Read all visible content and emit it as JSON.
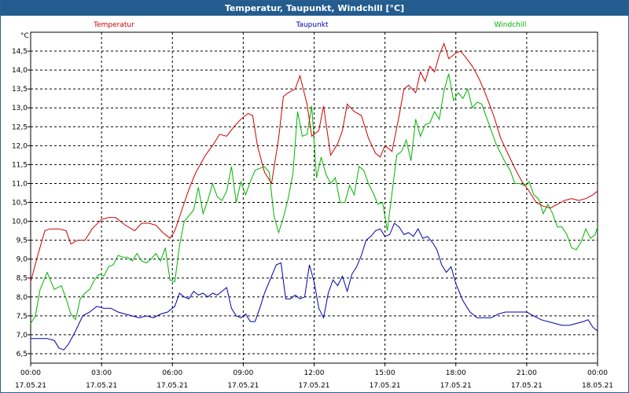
{
  "window": {
    "title": "Temperatur, Taupunkt, Windchill [°C]"
  },
  "chart_data": {
    "type": "line",
    "title": "Temperatur, Taupunkt, Windchill [°C]",
    "ylabel": "°C",
    "xlabel": "",
    "ylim": [
      6.25,
      15.0
    ],
    "xlim": [
      0,
      24
    ],
    "grid": true,
    "y_ticks": [
      6.5,
      7.0,
      7.5,
      8.0,
      8.5,
      9.0,
      9.5,
      10.0,
      10.5,
      11.0,
      11.5,
      12.0,
      12.5,
      13.0,
      13.5,
      14.0,
      14.5
    ],
    "y_tick_labels": [
      "6,5",
      "7,0",
      "7,5",
      "8,0",
      "8,5",
      "9,0",
      "9,5",
      "10,0",
      "10,5",
      "11,0",
      "11,5",
      "12,0",
      "12,5",
      "13,0",
      "13,5",
      "14,0",
      "14,5"
    ],
    "x_ticks": [
      0,
      3,
      6,
      9,
      12,
      15,
      18,
      21,
      24
    ],
    "x_tick_times": [
      "00:00",
      "03:00",
      "06:00",
      "09:00",
      "12:00",
      "15:00",
      "18:00",
      "21:00",
      "00:00"
    ],
    "x_tick_dates": [
      "17.05.21",
      "17.05.21",
      "17.05.21",
      "17.05.21",
      "17.05.21",
      "17.05.21",
      "17.05.21",
      "17.05.21",
      "18.05.21"
    ],
    "series": [
      {
        "name": "Temperatur",
        "color": "#cc0000",
        "x": [
          0,
          0.3,
          0.6,
          0.8,
          1.2,
          1.5,
          1.7,
          2.0,
          2.3,
          2.6,
          3.0,
          3.3,
          3.6,
          4.0,
          4.4,
          4.7,
          5.0,
          5.3,
          5.6,
          5.9,
          6.1,
          6.4,
          6.7,
          7.0,
          7.4,
          7.7,
          8.0,
          8.3,
          8.6,
          8.9,
          9.2,
          9.4,
          9.6,
          9.9,
          10.2,
          10.5,
          10.7,
          10.9,
          11.2,
          11.4,
          11.7,
          11.9,
          12.2,
          12.4,
          12.7,
          13.0,
          13.2,
          13.4,
          13.7,
          14.0,
          14.3,
          14.6,
          14.8,
          15.0,
          15.3,
          15.6,
          15.8,
          16.0,
          16.3,
          16.5,
          16.7,
          16.9,
          17.1,
          17.3,
          17.5,
          17.7,
          18.0,
          18.2,
          18.4,
          18.7,
          19.0,
          19.3,
          19.6,
          19.9,
          20.2,
          20.5,
          20.8,
          21.1,
          21.4,
          21.7,
          22.0,
          22.3,
          22.6,
          22.9,
          23.2,
          23.5,
          23.8,
          24.0
        ],
        "values": [
          8.4,
          9.1,
          9.75,
          9.8,
          9.8,
          9.75,
          9.4,
          9.5,
          9.5,
          9.8,
          10.05,
          10.1,
          10.1,
          9.9,
          9.75,
          9.95,
          9.95,
          9.9,
          9.7,
          9.55,
          9.75,
          10.3,
          10.85,
          11.3,
          11.75,
          12.0,
          12.3,
          12.25,
          12.5,
          12.7,
          12.85,
          12.8,
          12.0,
          11.3,
          11.0,
          12.2,
          13.3,
          13.4,
          13.5,
          13.85,
          13.1,
          12.25,
          12.4,
          13.05,
          11.75,
          12.05,
          12.4,
          13.1,
          12.9,
          12.8,
          12.2,
          11.8,
          11.7,
          12.0,
          11.85,
          12.8,
          13.5,
          13.6,
          13.4,
          13.95,
          13.7,
          14.1,
          13.95,
          14.4,
          14.7,
          14.3,
          14.45,
          14.5,
          14.35,
          14.1,
          13.75,
          13.3,
          12.8,
          12.2,
          11.8,
          11.4,
          11.05,
          10.8,
          10.5,
          10.4,
          10.35,
          10.45,
          10.55,
          10.6,
          10.55,
          10.6,
          10.7,
          10.8
        ]
      },
      {
        "name": "Taupunkt",
        "color": "#0000b0",
        "x": [
          0,
          0.3,
          0.7,
          1.0,
          1.2,
          1.4,
          1.6,
          1.9,
          2.2,
          2.5,
          2.8,
          3.1,
          3.4,
          3.7,
          4.0,
          4.3,
          4.6,
          4.9,
          5.2,
          5.5,
          5.8,
          6.1,
          6.3,
          6.5,
          6.7,
          6.9,
          7.1,
          7.3,
          7.5,
          7.7,
          7.9,
          8.1,
          8.3,
          8.5,
          8.7,
          8.9,
          9.1,
          9.3,
          9.5,
          9.7,
          9.9,
          10.2,
          10.4,
          10.6,
          10.8,
          11.0,
          11.2,
          11.4,
          11.6,
          11.8,
          12.0,
          12.2,
          12.4,
          12.6,
          12.8,
          13.0,
          13.2,
          13.4,
          13.6,
          13.8,
          14.0,
          14.2,
          14.4,
          14.6,
          14.8,
          15.0,
          15.2,
          15.4,
          15.6,
          15.8,
          16.0,
          16.2,
          16.4,
          16.6,
          16.8,
          17.0,
          17.2,
          17.4,
          17.6,
          17.8,
          18.0,
          18.3,
          18.6,
          18.9,
          19.2,
          19.5,
          19.8,
          20.1,
          20.4,
          20.7,
          21.0,
          21.3,
          21.6,
          21.9,
          22.2,
          22.5,
          22.8,
          23.1,
          23.4,
          23.6,
          23.8,
          24.0
        ],
        "values": [
          6.9,
          6.9,
          6.9,
          6.85,
          6.65,
          6.6,
          6.75,
          7.1,
          7.5,
          7.6,
          7.75,
          7.7,
          7.7,
          7.6,
          7.55,
          7.5,
          7.45,
          7.5,
          7.45,
          7.55,
          7.6,
          7.75,
          8.1,
          8.0,
          7.95,
          8.15,
          8.05,
          8.1,
          8.0,
          8.1,
          8.05,
          8.15,
          8.25,
          7.7,
          7.5,
          7.45,
          7.55,
          7.35,
          7.35,
          7.7,
          8.1,
          8.55,
          8.85,
          8.9,
          7.95,
          7.95,
          8.05,
          7.95,
          8.0,
          8.85,
          8.4,
          7.7,
          7.45,
          8.1,
          8.45,
          8.3,
          8.55,
          8.15,
          8.6,
          8.8,
          9.1,
          9.5,
          9.6,
          9.75,
          9.8,
          9.6,
          9.65,
          9.95,
          9.85,
          9.65,
          9.7,
          9.6,
          9.8,
          9.55,
          9.6,
          9.45,
          9.25,
          8.85,
          8.65,
          8.8,
          8.35,
          7.9,
          7.6,
          7.45,
          7.45,
          7.45,
          7.55,
          7.6,
          7.6,
          7.6,
          7.6,
          7.5,
          7.4,
          7.35,
          7.3,
          7.25,
          7.25,
          7.3,
          7.35,
          7.4,
          7.2,
          7.1
        ]
      },
      {
        "name": "Windchill",
        "color": "#00b400",
        "x": [
          0,
          0.2,
          0.4,
          0.7,
          1.0,
          1.3,
          1.5,
          1.7,
          1.9,
          2.1,
          2.3,
          2.5,
          2.7,
          2.9,
          3.1,
          3.3,
          3.5,
          3.7,
          3.9,
          4.1,
          4.3,
          4.5,
          4.7,
          4.9,
          5.1,
          5.3,
          5.5,
          5.7,
          5.9,
          6.1,
          6.3,
          6.5,
          6.7,
          6.9,
          7.1,
          7.3,
          7.5,
          7.7,
          7.9,
          8.1,
          8.3,
          8.5,
          8.7,
          8.9,
          9.1,
          9.3,
          9.5,
          9.7,
          9.9,
          10.1,
          10.3,
          10.5,
          10.7,
          10.9,
          11.1,
          11.3,
          11.5,
          11.7,
          11.9,
          12.1,
          12.3,
          12.5,
          12.7,
          12.9,
          13.1,
          13.3,
          13.5,
          13.7,
          13.9,
          14.1,
          14.3,
          14.5,
          14.7,
          14.9,
          15.1,
          15.3,
          15.5,
          15.7,
          15.9,
          16.1,
          16.3,
          16.5,
          16.7,
          16.9,
          17.1,
          17.3,
          17.5,
          17.7,
          17.9,
          18.1,
          18.3,
          18.5,
          18.7,
          18.9,
          19.1,
          19.3,
          19.5,
          19.7,
          19.9,
          20.1,
          20.3,
          20.5,
          20.7,
          20.9,
          21.1,
          21.3,
          21.5,
          21.7,
          21.9,
          22.1,
          22.3,
          22.5,
          22.7,
          22.9,
          23.1,
          23.3,
          23.5,
          23.7,
          23.9,
          24.0
        ],
        "values": [
          7.3,
          7.5,
          8.2,
          8.65,
          8.2,
          8.3,
          7.95,
          7.55,
          7.4,
          7.95,
          8.1,
          8.2,
          8.45,
          8.6,
          8.55,
          8.8,
          8.85,
          9.1,
          9.05,
          9.05,
          8.95,
          9.15,
          8.95,
          8.9,
          9.0,
          9.15,
          8.95,
          9.3,
          8.45,
          8.4,
          9.35,
          10.0,
          10.15,
          10.3,
          10.9,
          10.2,
          10.55,
          11.0,
          10.65,
          10.55,
          10.8,
          11.45,
          10.5,
          11.05,
          10.7,
          11.05,
          11.35,
          11.4,
          11.45,
          11.3,
          10.15,
          9.7,
          10.1,
          10.6,
          11.25,
          12.9,
          12.25,
          12.3,
          13.05,
          11.15,
          11.7,
          11.25,
          11.0,
          11.15,
          10.5,
          10.5,
          10.95,
          10.7,
          11.45,
          11.35,
          11.0,
          10.75,
          10.45,
          10.5,
          9.75,
          10.75,
          11.75,
          11.85,
          12.15,
          11.6,
          12.7,
          12.25,
          12.55,
          12.6,
          12.9,
          12.7,
          13.45,
          13.9,
          13.2,
          13.4,
          13.25,
          13.5,
          13.0,
          13.15,
          13.1,
          12.75,
          12.4,
          12.05,
          11.8,
          11.55,
          11.35,
          11.0,
          11.0,
          10.95,
          11.05,
          10.7,
          10.6,
          10.2,
          10.45,
          10.2,
          9.85,
          9.85,
          9.65,
          9.3,
          9.25,
          9.45,
          9.8,
          9.55,
          9.65,
          9.85
        ]
      }
    ]
  }
}
